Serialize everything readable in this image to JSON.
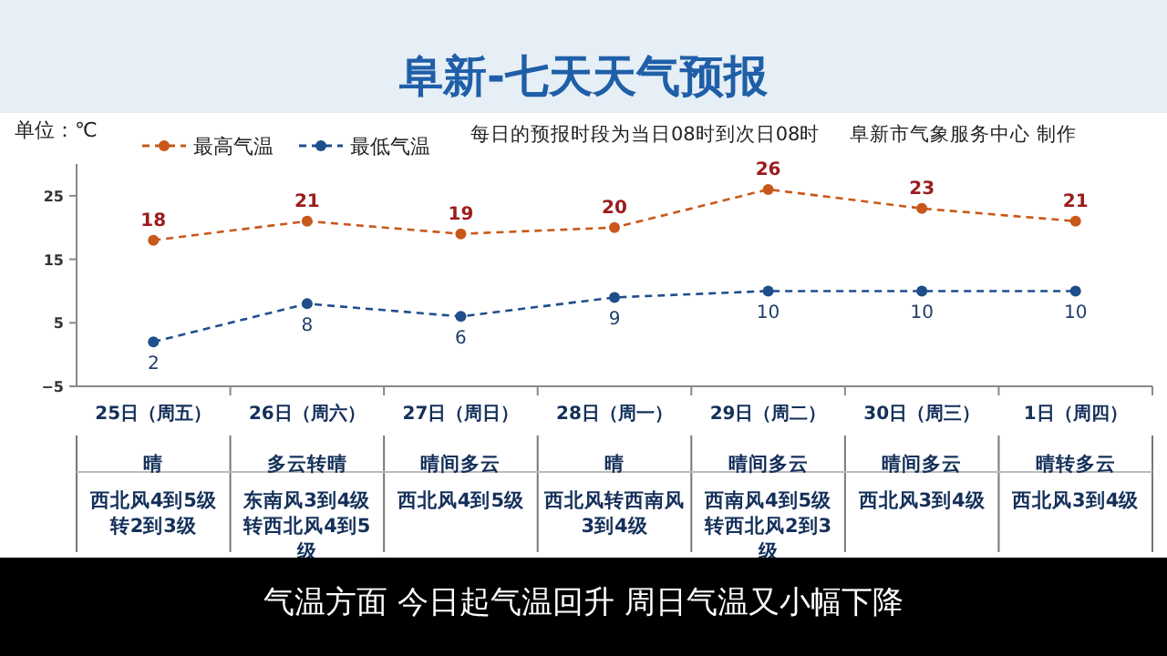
{
  "chart_data": {
    "type": "line",
    "title": "阜新-七天天气预报",
    "ylabel": "单位：℃",
    "categories": [
      "25日（周五）",
      "26日（周六）",
      "27日（周日）",
      "28日（周一）",
      "29日（周二）",
      "30日（周三）",
      "1日（周四）"
    ],
    "series": [
      {
        "name": "最高气温",
        "color": "#c8581a",
        "values": [
          18,
          21,
          19,
          20,
          26,
          23,
          21
        ]
      },
      {
        "name": "最低气温",
        "color": "#1f4e8c",
        "values": [
          2,
          8,
          6,
          9,
          10,
          10,
          10
        ]
      }
    ],
    "ylim": [
      -5,
      30
    ],
    "yticks": [
      -5,
      5,
      15,
      25
    ],
    "data_labels": true,
    "legend": "top left",
    "marker": "circle",
    "line_style": "dashed",
    "grid": false,
    "annotations": [
      "每日的预报时段为当日08时到次日08时",
      "阜新市气象服务中心 制作",
      "晴",
      "西北风4到5级转2到3级",
      "多云转晴",
      "东南风3到4级转西北风4到5级",
      "晴间多云",
      "西北风4到5级",
      "晴",
      "西北风转西南风3到4级",
      "晴间多云",
      "西南风4到5级转西北风2到3级",
      "晴间多云",
      "西北风3到4级",
      "晴转多云",
      "西北风3到4级",
      "气温方面 今日起气温回升 周日气温又小幅下降"
    ]
  }
}
